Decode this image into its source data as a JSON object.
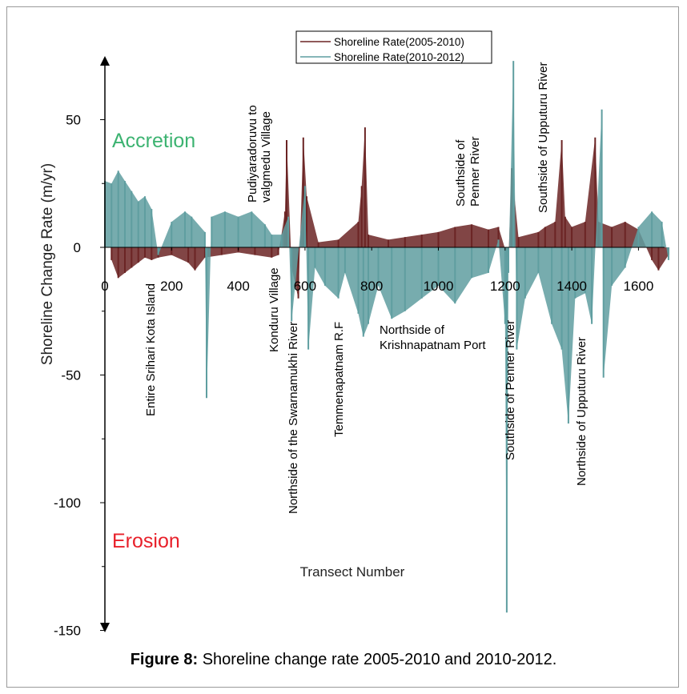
{
  "chart_data": {
    "type": "bar",
    "ylabel": "Shoreline Change Rate (m/yr)",
    "xlabel": "Transect Number",
    "xlim": [
      0,
      1700
    ],
    "ylim": [
      -150,
      75
    ],
    "x_ticks": [
      "0",
      "200",
      "400",
      "600",
      "800",
      "1000",
      "1200",
      "1400",
      "1600"
    ],
    "y_ticks": [
      "50",
      "0",
      "-50",
      "-100",
      "-150"
    ],
    "legend_position": "top-right",
    "series": [
      {
        "name": "Shoreline Rate(2005-2010)",
        "color": "#6b2424",
        "points": [
          [
            20,
            -5
          ],
          [
            40,
            -12
          ],
          [
            60,
            -10
          ],
          [
            80,
            -8
          ],
          [
            100,
            -6
          ],
          [
            120,
            -4
          ],
          [
            140,
            -5
          ],
          [
            160,
            -4
          ],
          [
            200,
            -3
          ],
          [
            250,
            -6
          ],
          [
            270,
            -9
          ],
          [
            300,
            -4
          ],
          [
            350,
            -3
          ],
          [
            400,
            -2
          ],
          [
            450,
            -3
          ],
          [
            500,
            -4
          ],
          [
            520,
            -3
          ],
          [
            540,
            14
          ],
          [
            545,
            42
          ],
          [
            560,
            -8
          ],
          [
            580,
            -20
          ],
          [
            595,
            43
          ],
          [
            605,
            20
          ],
          [
            640,
            2
          ],
          [
            700,
            3
          ],
          [
            760,
            10
          ],
          [
            770,
            24
          ],
          [
            780,
            47
          ],
          [
            790,
            5
          ],
          [
            850,
            3
          ],
          [
            900,
            4
          ],
          [
            950,
            5
          ],
          [
            1000,
            6
          ],
          [
            1050,
            8
          ],
          [
            1100,
            9
          ],
          [
            1150,
            7
          ],
          [
            1180,
            8
          ],
          [
            1210,
            -5
          ],
          [
            1220,
            31
          ],
          [
            1240,
            4
          ],
          [
            1300,
            6
          ],
          [
            1320,
            8
          ],
          [
            1350,
            10
          ],
          [
            1370,
            42
          ],
          [
            1380,
            12
          ],
          [
            1400,
            8
          ],
          [
            1440,
            10
          ],
          [
            1470,
            43
          ],
          [
            1480,
            10
          ],
          [
            1520,
            8
          ],
          [
            1560,
            10
          ],
          [
            1600,
            7
          ],
          [
            1640,
            -5
          ],
          [
            1660,
            -9
          ],
          [
            1690,
            -3
          ]
        ]
      },
      {
        "name": "Shoreline Rate(2010-2012)",
        "color": "#5f9ea0",
        "points": [
          [
            0,
            26
          ],
          [
            20,
            25
          ],
          [
            40,
            30
          ],
          [
            60,
            26
          ],
          [
            80,
            22
          ],
          [
            100,
            18
          ],
          [
            120,
            20
          ],
          [
            140,
            15
          ],
          [
            160,
            -3
          ],
          [
            200,
            10
          ],
          [
            240,
            14
          ],
          [
            260,
            12
          ],
          [
            300,
            6
          ],
          [
            305,
            -59
          ],
          [
            320,
            12
          ],
          [
            360,
            14
          ],
          [
            400,
            12
          ],
          [
            440,
            14
          ],
          [
            480,
            9
          ],
          [
            500,
            5
          ],
          [
            530,
            5
          ],
          [
            550,
            12
          ],
          [
            560,
            -29
          ],
          [
            600,
            24
          ],
          [
            610,
            -40
          ],
          [
            630,
            -8
          ],
          [
            660,
            -15
          ],
          [
            700,
            -20
          ],
          [
            720,
            -10
          ],
          [
            760,
            -26
          ],
          [
            775,
            -35
          ],
          [
            790,
            -30
          ],
          [
            820,
            -15
          ],
          [
            860,
            -28
          ],
          [
            900,
            -25
          ],
          [
            950,
            -20
          ],
          [
            1000,
            -15
          ],
          [
            1050,
            -22
          ],
          [
            1100,
            -12
          ],
          [
            1150,
            -10
          ],
          [
            1180,
            3
          ],
          [
            1200,
            -30
          ],
          [
            1205,
            -143
          ],
          [
            1210,
            -10
          ],
          [
            1225,
            73
          ],
          [
            1235,
            -40
          ],
          [
            1260,
            -20
          ],
          [
            1300,
            -10
          ],
          [
            1340,
            -30
          ],
          [
            1370,
            -40
          ],
          [
            1390,
            -69
          ],
          [
            1410,
            -20
          ],
          [
            1440,
            -18
          ],
          [
            1460,
            -30
          ],
          [
            1490,
            54
          ],
          [
            1495,
            -51
          ],
          [
            1520,
            -15
          ],
          [
            1560,
            -8
          ],
          [
            1600,
            8
          ],
          [
            1640,
            14
          ],
          [
            1670,
            10
          ],
          [
            1690,
            -5
          ]
        ]
      }
    ],
    "annotations": [
      {
        "text": "Accretion",
        "color": "#3cb371"
      },
      {
        "text": "Erosion",
        "color": "#e8202a"
      },
      {
        "text": "Entire Srihari Kota Island"
      },
      {
        "text": "Pudiyaradoruvu to valgmedu Village"
      },
      {
        "text": "Konduru Village"
      },
      {
        "text": "Northside of the Swarnamukhi River"
      },
      {
        "text": "Temmenapatnam R.F"
      },
      {
        "text": "Northside of Krishnapatnam Port"
      },
      {
        "text": "Southside of Penner River"
      },
      {
        "text": "Southside of Penner River"
      },
      {
        "text": "Southside of Upputuru River"
      },
      {
        "text": "Northside of Upputuru River"
      }
    ]
  },
  "caption": {
    "label": "Figure 8:",
    "text": " Shoreline change rate 2005-2010 and 2010-2012."
  }
}
